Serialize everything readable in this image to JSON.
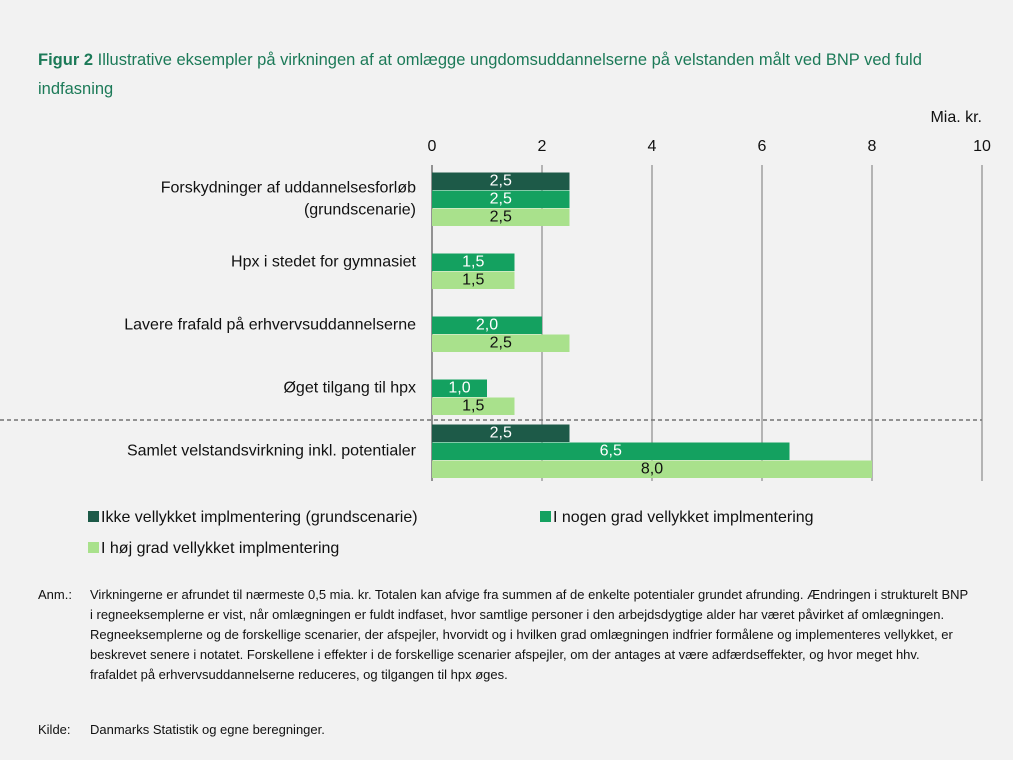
{
  "chart_data": {
    "type": "hbar",
    "figure_label": "Figur 2",
    "title": "Illustrative eksempler på virkningen af at omlægge ungdomsuddannelserne på velstanden målt ved BNP ved fuld indfasning",
    "x_label": "Mia. kr.",
    "categories": [
      "Forskydninger af uddannelsesforløb\n(grundscenarie)",
      "Hpx i stedet for gymnasiet",
      "Lavere frafald på erhvervsuddannelserne",
      "Øget tilgang til hpx",
      "Samlet velstandsvirkning inkl. potentialer"
    ],
    "series": [
      {
        "name": "Ikke vellykket implmentering (grundscenarie)",
        "color": "#1d5a48",
        "values": [
          2.5,
          null,
          null,
          null,
          2.5
        ],
        "value_labels": [
          "2,5",
          null,
          null,
          null,
          "2,5"
        ]
      },
      {
        "name": "I nogen grad vellykket implmentering",
        "color": "#14a160",
        "values": [
          2.5,
          1.5,
          2.0,
          1.0,
          6.5
        ],
        "value_labels": [
          "2,5",
          "1,5",
          "2,0",
          "1,0",
          "6,5"
        ]
      },
      {
        "name": "I høj grad vellykket implmentering",
        "color": "#a9e18c",
        "values": [
          2.5,
          1.5,
          2.5,
          1.5,
          8.0
        ],
        "value_labels": [
          "2,5",
          "1,5",
          "2,5",
          "1,5",
          "8,0"
        ]
      }
    ],
    "xlim": [
      0,
      10
    ],
    "xticks": [
      0,
      2,
      4,
      6,
      8,
      10
    ],
    "grid": true
  },
  "notes": {
    "label": "Anm.:",
    "text": "Virkningerne er afrundet til nærmeste 0,5 mia. kr. Totalen kan afvige fra summen af de enkelte potentialer grundet afrunding. Ændringen i strukturelt BNP i regneeksemplerne er vist, når omlægningen er fuldt indfaset, hvor samtlige personer i den arbejdsdygtige alder har været påvirket af omlægningen. Regneeksemplerne og de forskellige scenarier, der afspejler, hvorvidt og i hvilken grad omlægningen indfrier formålene og implementeres vellykket, er beskrevet senere i notatet. Forskellene i effekter i de forskellige scenarier afspejler, om der antages at være adfærdseffekter, og hvor meget hhv. frafaldet på erhvervsuddannelserne reduceres, og tilgangen til hpx øges."
  },
  "source": {
    "label": "Kilde:",
    "text": "Danmarks Statistik og egne beregninger."
  }
}
